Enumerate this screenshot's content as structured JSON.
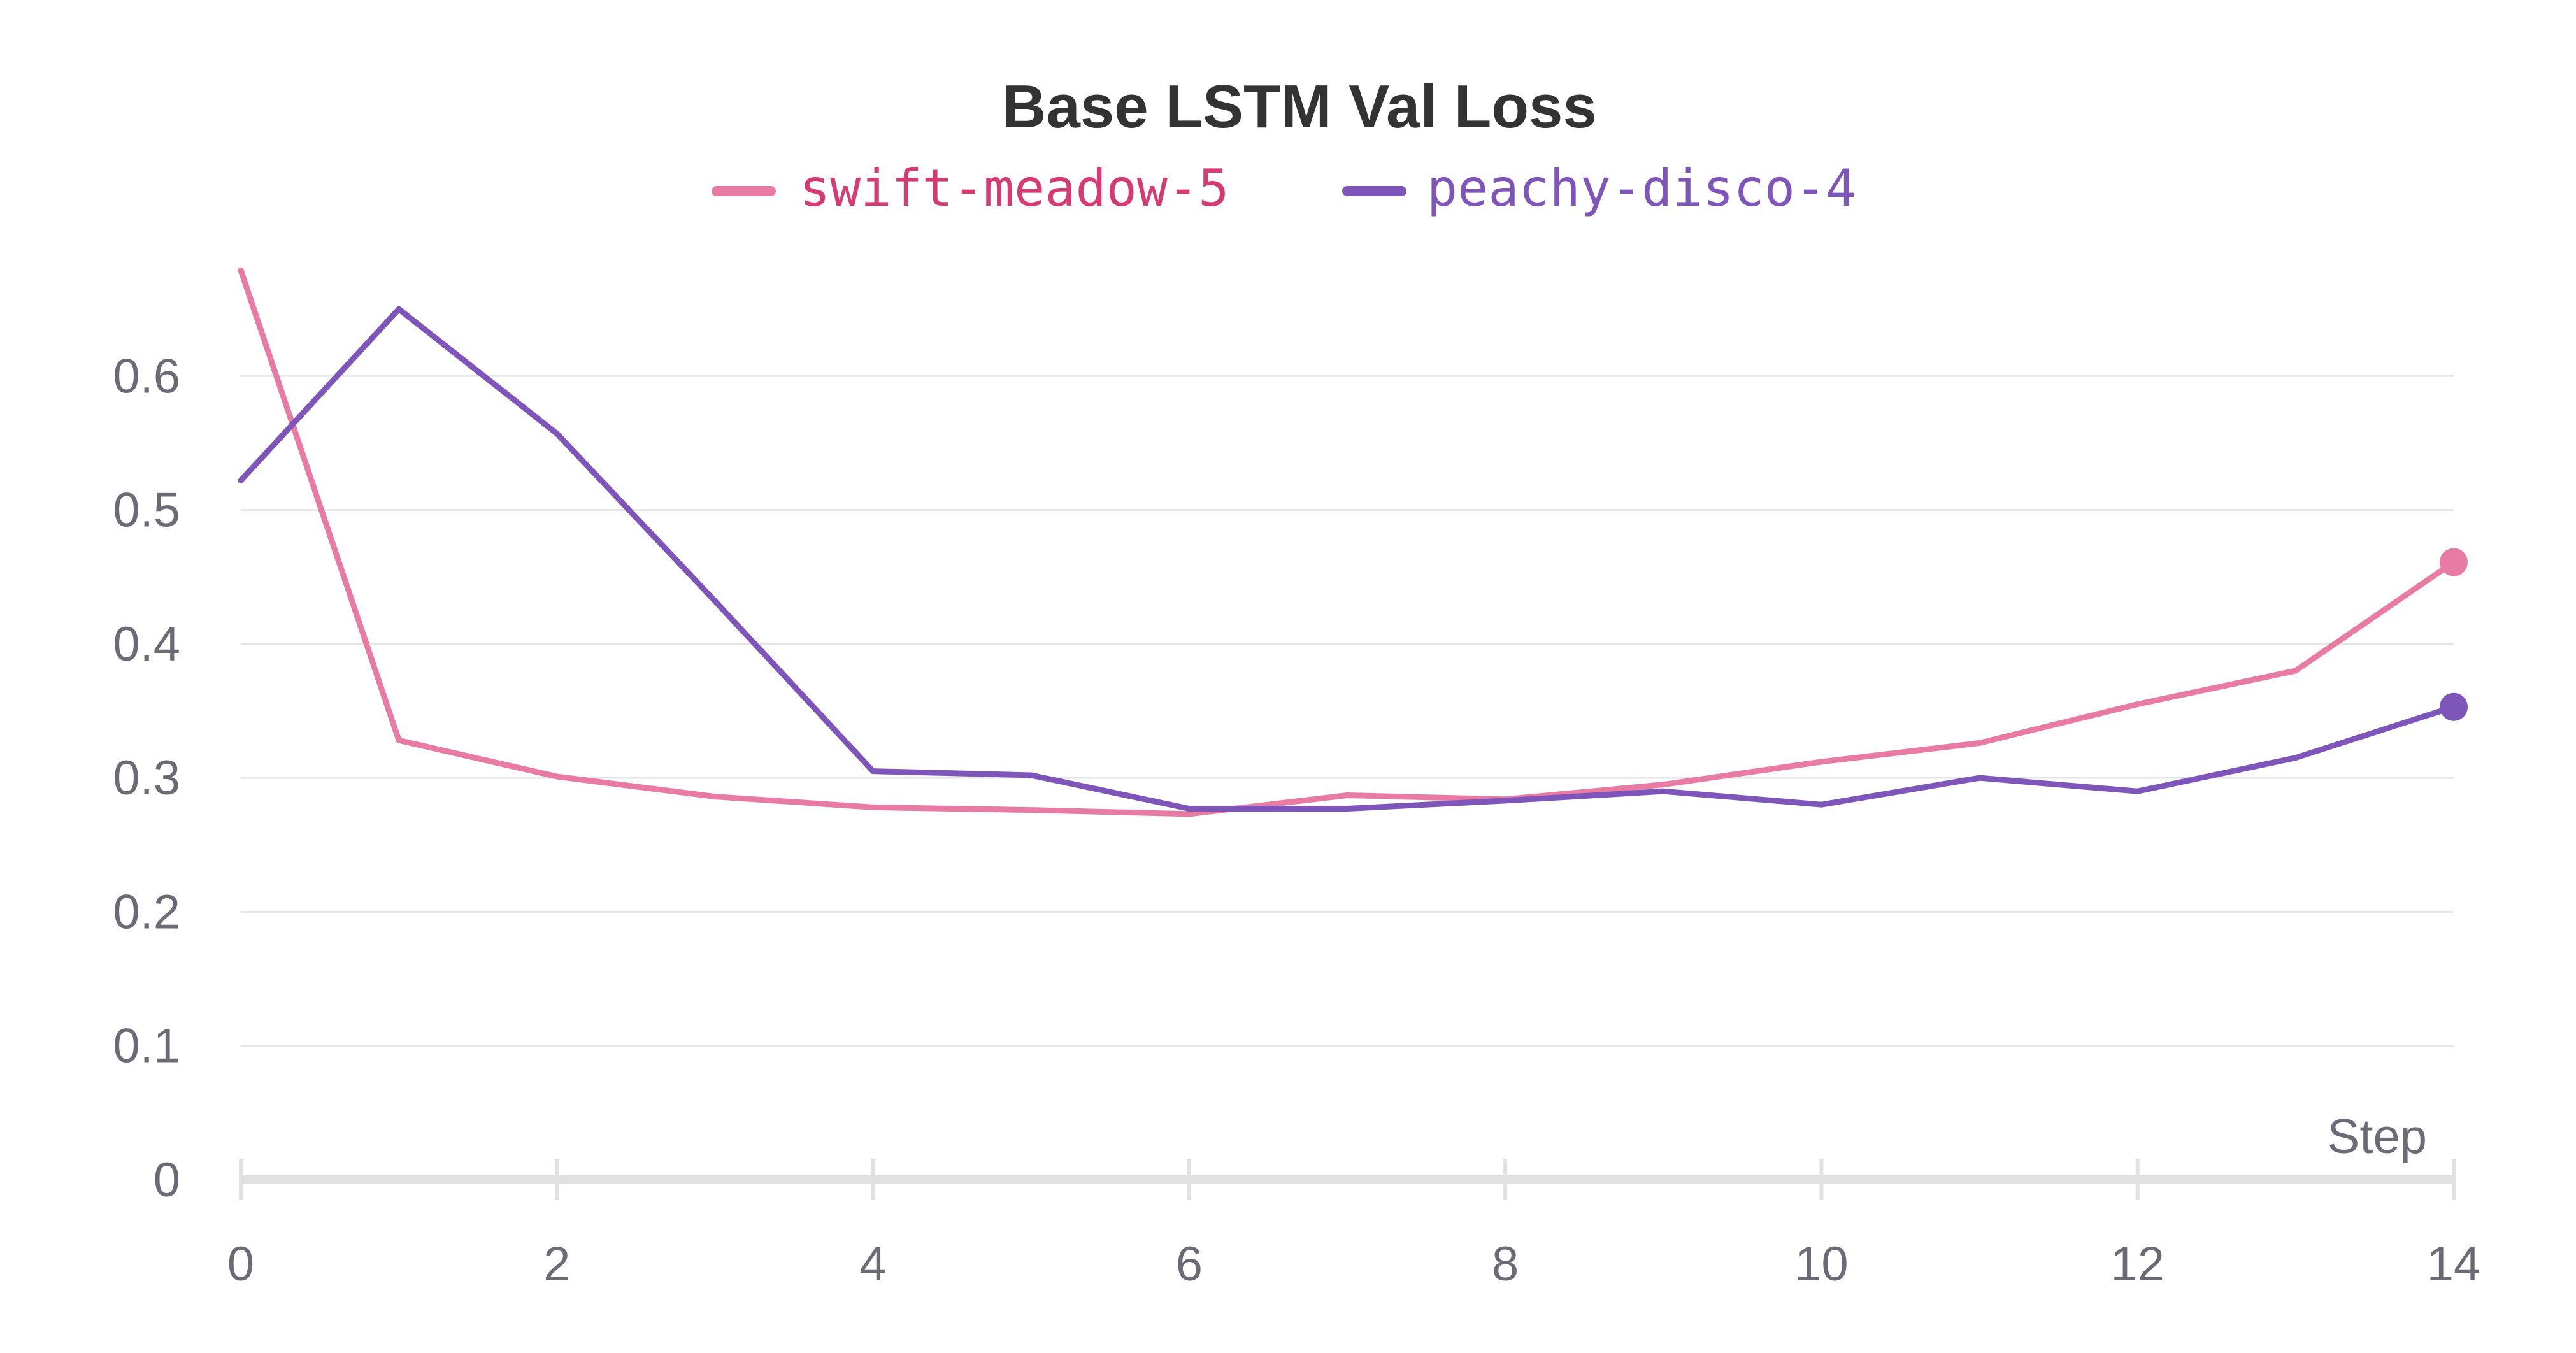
{
  "chart_data": {
    "type": "line",
    "title": "Base LSTM Val Loss",
    "xlabel": "Step",
    "ylabel": "",
    "xlim": [
      0,
      14
    ],
    "ylim": [
      0,
      0.7
    ],
    "xticks": [
      0,
      2,
      4,
      6,
      8,
      10,
      12,
      14
    ],
    "yticks": [
      0,
      0.1,
      0.2,
      0.3,
      0.4,
      0.5,
      0.6
    ],
    "grid": true,
    "legend": "top-center",
    "x": [
      0,
      1,
      2,
      3,
      4,
      5,
      6,
      7,
      8,
      9,
      10,
      11,
      12,
      13,
      14
    ],
    "series": [
      {
        "name": "swift-meadow-5",
        "color": "#e87ba4",
        "label_color": "#d63a72",
        "values": [
          0.679,
          0.328,
          0.301,
          0.286,
          0.278,
          0.276,
          0.273,
          0.287,
          0.284,
          0.295,
          0.312,
          0.326,
          0.355,
          0.38,
          0.461
        ]
      },
      {
        "name": "peachy-disco-4",
        "color": "#7e55b8",
        "label_color": "#7e55b8",
        "values": [
          0.522,
          0.65,
          0.557,
          0.432,
          0.305,
          0.302,
          0.277,
          0.277,
          0.283,
          0.29,
          0.28,
          0.3,
          0.29,
          0.315,
          0.353
        ]
      }
    ]
  }
}
